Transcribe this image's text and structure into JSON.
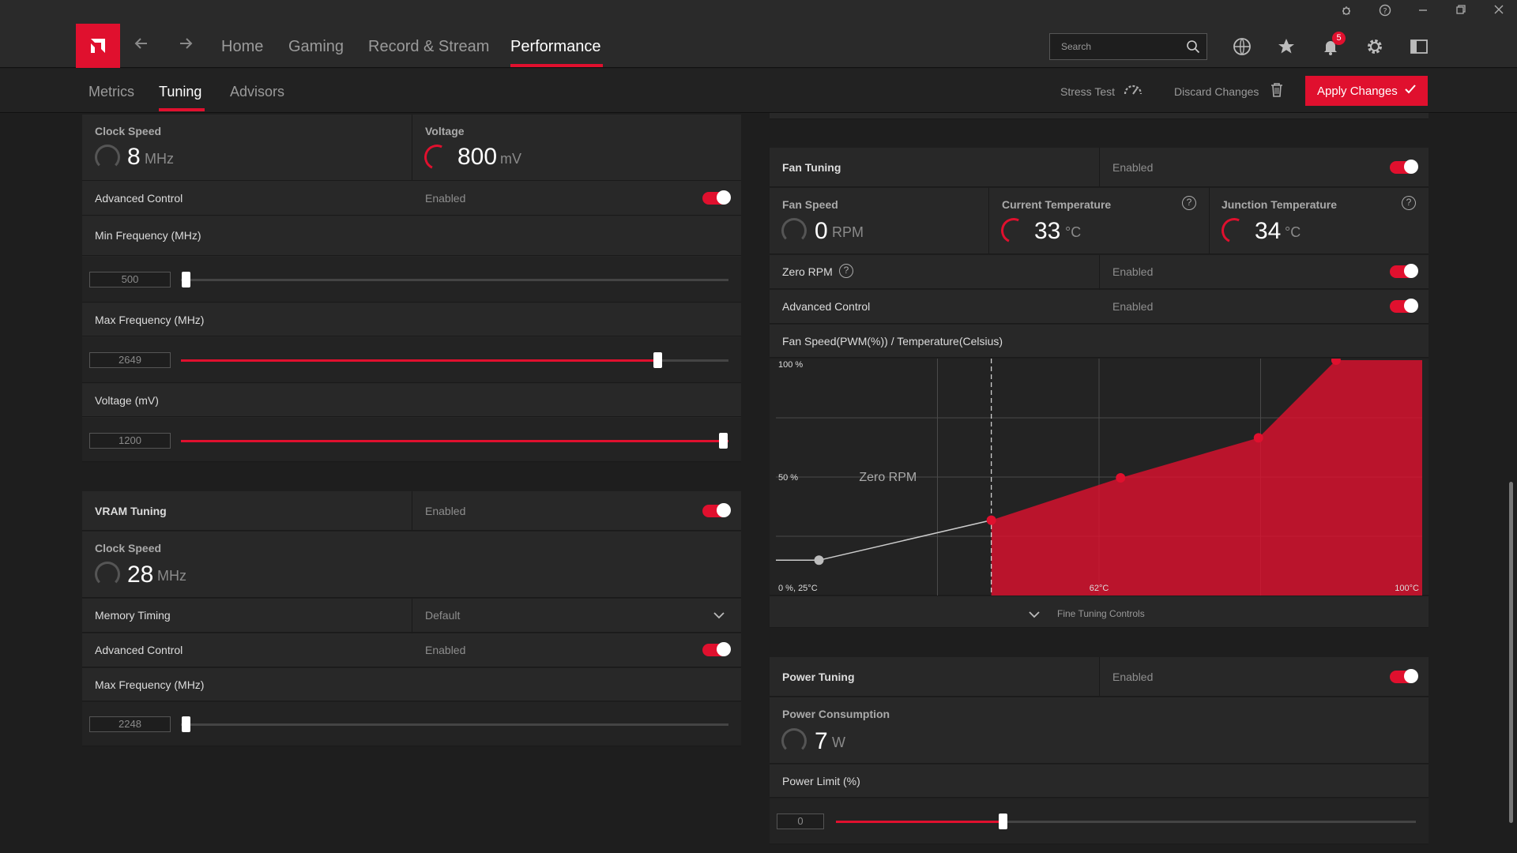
{
  "nav": {
    "items": [
      "Home",
      "Gaming",
      "Record & Stream",
      "Performance"
    ],
    "search_placeholder": "Search",
    "notifications_count": "5"
  },
  "subnav": {
    "tabs": [
      "Metrics",
      "Tuning",
      "Advisors"
    ],
    "stress_test": "Stress Test",
    "discard": "Discard Changes",
    "apply": "Apply Changes"
  },
  "gpu": {
    "clock_label": "Clock Speed",
    "clock_value": "8",
    "clock_unit": "MHz",
    "voltage_label": "Voltage",
    "voltage_value": "800",
    "voltage_unit": "mV",
    "advanced_label": "Advanced Control",
    "advanced_state": "Enabled",
    "min_freq_label": "Min Frequency (MHz)",
    "min_freq_value": "500",
    "max_freq_label": "Max Frequency (MHz)",
    "max_freq_value": "2649",
    "voltage_mv_label": "Voltage (mV)",
    "voltage_mv_value": "1200"
  },
  "vram": {
    "title": "VRAM Tuning",
    "state": "Enabled",
    "clock_label": "Clock Speed",
    "clock_value": "28",
    "clock_unit": "MHz",
    "memory_timing_label": "Memory Timing",
    "memory_timing_value": "Default",
    "advanced_label": "Advanced Control",
    "advanced_state": "Enabled",
    "max_freq_label": "Max Frequency (MHz)",
    "max_freq_value": "2248"
  },
  "fan": {
    "title": "Fan Tuning",
    "state": "Enabled",
    "speed_label": "Fan Speed",
    "speed_value": "0",
    "speed_unit": "RPM",
    "current_temp_label": "Current Temperature",
    "current_temp_value": "33",
    "temp_unit": "°C",
    "junction_temp_label": "Junction Temperature",
    "junction_temp_value": "34",
    "zero_rpm_label": "Zero RPM",
    "zero_rpm_state": "Enabled",
    "advanced_label": "Advanced Control",
    "advanced_state": "Enabled",
    "curve_label": "Fan Speed(PWM(%)) / Temperature(Celsius)",
    "fine_tuning": "Fine Tuning Controls"
  },
  "chart_data": {
    "type": "area",
    "title": "Fan Speed(PWM(%)) / Temperature(Celsius)",
    "annotation": "Zero RPM",
    "y_ticks": [
      "100 %",
      "50 %"
    ],
    "origin_label": "0 %, 25°C",
    "x_ticks": [
      "62°C",
      "100°C"
    ],
    "xlim": [
      25,
      100
    ],
    "ylim": [
      0,
      100
    ],
    "zero_rpm_threshold_x": 50,
    "points": [
      {
        "x": 30,
        "y": 15,
        "active": false
      },
      {
        "x": 50,
        "y": 32,
        "active": true
      },
      {
        "x": 65,
        "y": 50,
        "active": true
      },
      {
        "x": 81,
        "y": 67,
        "active": true
      },
      {
        "x": 90,
        "y": 100,
        "active": true
      }
    ]
  },
  "power": {
    "title": "Power Tuning",
    "state": "Enabled",
    "consumption_label": "Power Consumption",
    "consumption_value": "7",
    "consumption_unit": "W",
    "limit_label": "Power Limit (%)",
    "limit_value": "0"
  },
  "sliders": {
    "min_freq_fraction": 0,
    "max_freq_fraction": 0.87,
    "voltage_fraction": 1.0,
    "vram_max_freq_fraction": 0,
    "power_limit_fraction": 0.29
  },
  "colors": {
    "accent": "#e0102e",
    "background": "#1e1e1e",
    "panel": "#282828"
  }
}
